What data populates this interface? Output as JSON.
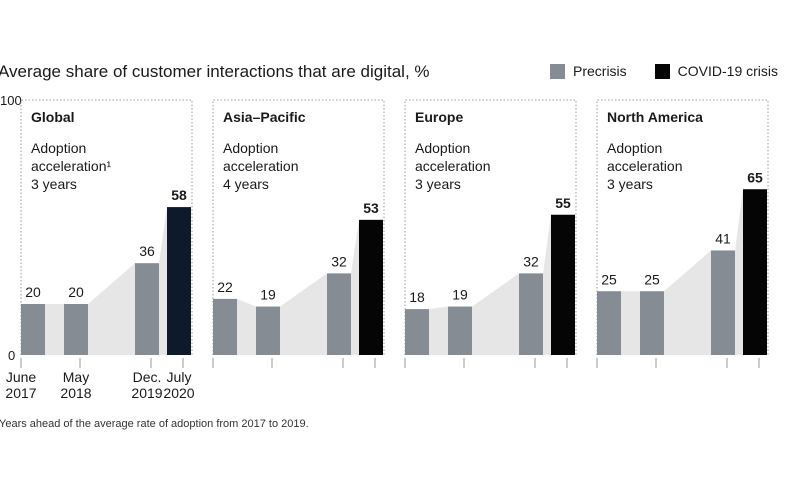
{
  "title": "Average share of customer interactions that are digital, %",
  "legend": [
    {
      "label": "Precrisis",
      "color": "#868c94"
    },
    {
      "label": "COVID-19 crisis",
      "color": "#0e1a2b"
    }
  ],
  "footnote": "Years ahead of the average rate of adoption from 2017 to 2019.",
  "colors": {
    "precrisis": "#868c94",
    "crisis": "#0e1a2b",
    "crisis_black": "#050505",
    "area": "#e6e6e6"
  },
  "y_axis_ticks": [
    "100",
    "0"
  ],
  "chart_data": [
    {
      "type": "bar",
      "panel": "Global",
      "subtitle_lines": [
        "Adoption",
        "acceleration¹"
      ],
      "years_label": "3 years",
      "categories": [
        "June 2017",
        "May 2018",
        "Dec. 2019",
        "July 2020"
      ],
      "category_labels": [
        [
          "June",
          "2017"
        ],
        [
          "May",
          "2018"
        ],
        [
          "Dec.",
          "2019"
        ],
        [
          "July",
          "2020"
        ]
      ],
      "values": [
        20,
        20,
        36,
        58
      ],
      "value_labels": [
        "20",
        "20",
        "36",
        "58"
      ],
      "ylim": [
        0,
        100
      ]
    },
    {
      "type": "bar",
      "panel": "Asia–Pacific",
      "subtitle_lines": [
        "Adoption",
        "acceleration"
      ],
      "years_label": "4 years",
      "categories": [
        "June 2017",
        "May 2018",
        "Dec. 2019",
        "July 2020"
      ],
      "values": [
        22,
        19,
        32,
        53
      ],
      "value_labels": [
        "22",
        "19",
        "32",
        "53"
      ],
      "ylim": [
        0,
        100
      ]
    },
    {
      "type": "bar",
      "panel": "Europe",
      "subtitle_lines": [
        "Adoption",
        "acceleration"
      ],
      "years_label": "3 years",
      "categories": [
        "June 2017",
        "May 2018",
        "Dec. 2019",
        "July 2020"
      ],
      "values": [
        18,
        19,
        32,
        55
      ],
      "value_labels": [
        "18",
        "19",
        "32",
        "55"
      ],
      "ylim": [
        0,
        100
      ]
    },
    {
      "type": "bar",
      "panel": "North America",
      "subtitle_lines": [
        "Adoption",
        "acceleration"
      ],
      "years_label": "3 years",
      "categories": [
        "June 2017",
        "May 2018",
        "Dec. 2019",
        "July 2020"
      ],
      "values": [
        25,
        25,
        41,
        65
      ],
      "value_labels": [
        "25",
        "25",
        "41",
        "65"
      ],
      "ylim": [
        0,
        100
      ]
    }
  ]
}
